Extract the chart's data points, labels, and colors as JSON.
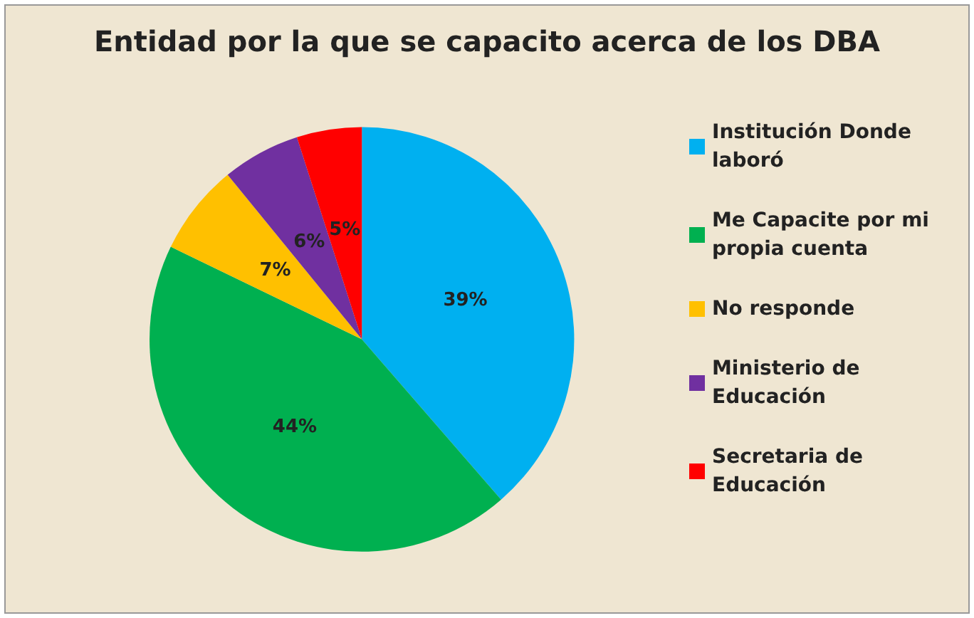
{
  "chart_data": {
    "type": "pie",
    "title": "Entidad por la que se capacito acerca de los DBA",
    "categories": [
      "Institución Donde laboró",
      "Me Capacite por mi propia cuenta",
      "No responde",
      "Ministerio de Educación",
      "Secretaria de Educación"
    ],
    "values": [
      39,
      44,
      7,
      6,
      5
    ],
    "colors": [
      "#00b0f0",
      "#00b050",
      "#ffc000",
      "#7030a0",
      "#ff0000"
    ],
    "value_labels": [
      "39%",
      "44%",
      "7%",
      "6%",
      "5%"
    ],
    "legend": "right"
  }
}
